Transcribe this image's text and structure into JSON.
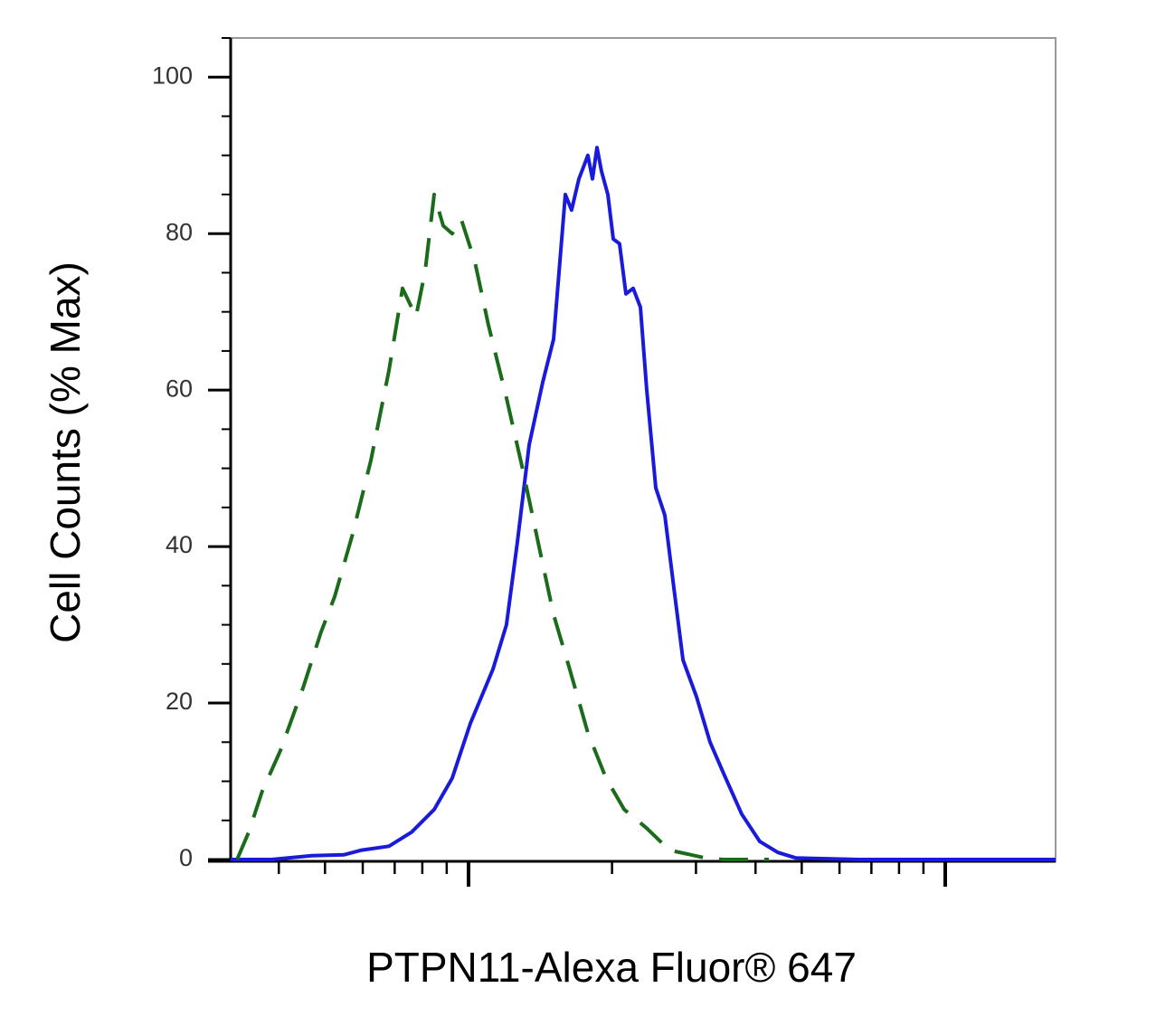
{
  "chart_data": {
    "type": "line",
    "xlabel": "PTPN11-Alexa Fluor® 647",
    "ylabel": "Cell Counts (% Max)",
    "xscale": "log",
    "xlim": [
      317,
      17040
    ],
    "xticks": [
      400,
      500,
      600,
      700,
      800,
      900,
      1000,
      2000,
      3000,
      4000,
      5000,
      6000,
      7000,
      8000,
      9000,
      10000
    ],
    "ylim": [
      0,
      105
    ],
    "yticks": [
      0,
      20,
      40,
      60,
      80,
      100
    ],
    "y_minor_ticks": [
      5,
      10,
      15,
      25,
      30,
      35,
      45,
      50,
      55,
      65,
      70,
      75,
      85,
      90,
      95,
      105
    ],
    "series": [
      {
        "color": "#1a1adb",
        "dash": false,
        "x": [
          317,
          386,
          469,
          547,
          597,
          681,
          760,
          847,
          924,
          1009,
          1125,
          1201,
          1266,
          1340,
          1431,
          1508,
          1596,
          1645,
          1704,
          1742,
          1780,
          1820,
          1860,
          1900,
          1960,
          2012,
          2074,
          2139,
          2215,
          2294,
          2365,
          2471,
          2581,
          2696,
          2818,
          3008,
          3211,
          3428,
          3742,
          4083,
          4457,
          4863,
          6603,
          17040
        ],
        "values": [
          0,
          0,
          0.5,
          0.6,
          1.2,
          1.7,
          3.5,
          6.4,
          10.4,
          17.4,
          24.3,
          30,
          40.5,
          53,
          61,
          66.5,
          85,
          83,
          87,
          88.5,
          90,
          87,
          91,
          88,
          85,
          79.3,
          78.7,
          72.3,
          73,
          70.6,
          60,
          47.5,
          44,
          34.7,
          25.5,
          20.8,
          15,
          11,
          5.8,
          2.3,
          0.9,
          0.2,
          0,
          0
        ]
      },
      {
        "color": "#1a6b1a",
        "dash": true,
        "x": [
          327,
          346,
          369,
          403,
          450,
          490,
          524,
          572,
          624,
          681,
          727,
          776,
          811,
          847,
          885,
          924,
          966,
          1031,
          1101,
          1201,
          1300,
          1400,
          1508,
          1631,
          1780,
          1943,
          2121,
          2365,
          2638,
          3142,
          3428,
          4266
        ],
        "values": [
          0,
          3.5,
          8.7,
          13.9,
          22,
          29,
          33.6,
          41.7,
          51,
          62.5,
          73,
          69.4,
          75.2,
          85,
          81,
          80,
          81.8,
          76.4,
          68.3,
          59,
          49.8,
          40.5,
          31.3,
          24.3,
          16.2,
          10.4,
          6.4,
          4,
          1.2,
          0.2,
          0,
          0
        ]
      }
    ]
  }
}
